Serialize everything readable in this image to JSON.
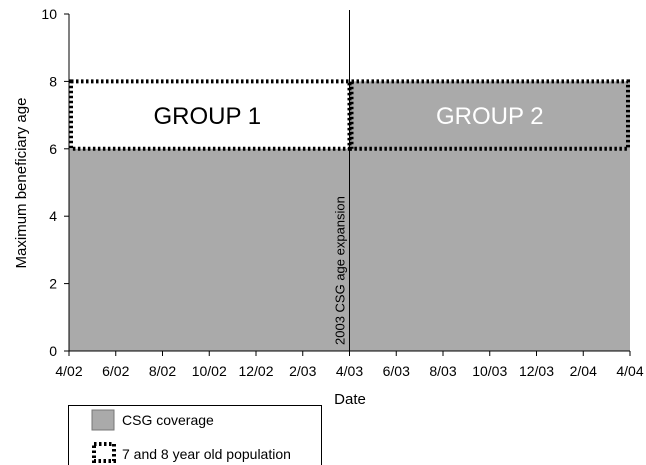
{
  "chart_data": {
    "type": "area",
    "xlabel": "Date",
    "ylabel": "Maximum beneficiary age",
    "ylim": [
      0,
      10
    ],
    "yticks": [
      0,
      2,
      4,
      6,
      8,
      10
    ],
    "xticks": [
      "4/02",
      "6/02",
      "8/02",
      "10/02",
      "12/02",
      "2/03",
      "4/03",
      "6/03",
      "8/03",
      "10/03",
      "12/03",
      "2/04",
      "4/04"
    ],
    "grid": false,
    "series": [
      {
        "name": "CSG coverage",
        "color": "#aaaaaa",
        "segments": [
          {
            "from": "4/02",
            "to": "4/03",
            "value": 6
          },
          {
            "from": "4/03",
            "to": "4/04",
            "value": 8
          }
        ]
      },
      {
        "name": "7 and 8 year old population",
        "style": "dotted-outline",
        "band": [
          6,
          8
        ],
        "from": "4/02",
        "to": "4/04"
      }
    ],
    "annotations": {
      "group1": "GROUP 1",
      "group2": "GROUP 2",
      "vertical_line": {
        "x": "4/03",
        "label": "2003 CSG age expansion"
      }
    },
    "legend": {
      "placement": "bottom-left",
      "items": [
        "CSG coverage",
        "7 and 8 year old population"
      ]
    }
  }
}
